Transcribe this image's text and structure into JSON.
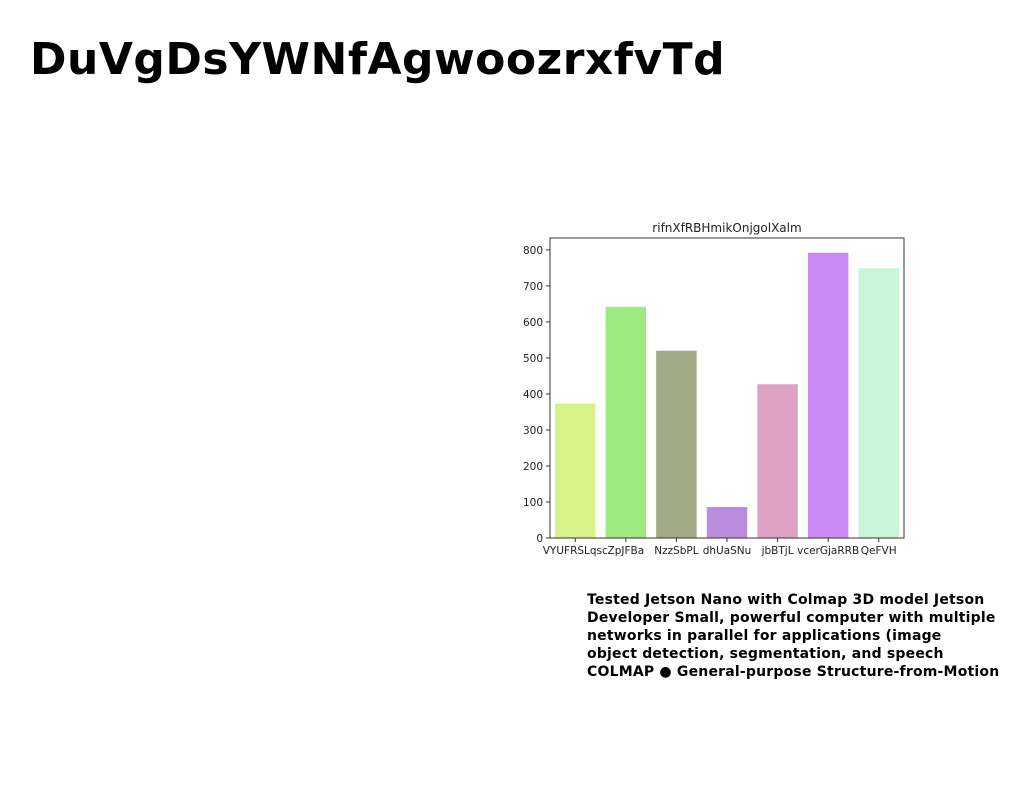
{
  "title": "DuVgDsYWNfAgwoozrxfvTd",
  "chart_data": {
    "type": "bar",
    "title": "rifnXfRBHmikOnjgolXalm",
    "categories": [
      "VYUFRSLqsc",
      "ZpJFBa",
      "NzzSbPL",
      "dhUaSNu",
      "jbBTjL",
      "vcerGjaRRB",
      "QeFVH"
    ],
    "values": [
      373,
      642,
      520,
      86,
      427,
      792,
      749
    ],
    "colors": [
      "#d8f28a",
      "#9eea80",
      "#a2a986",
      "#b98ce0",
      "#dea2c4",
      "#c98af4",
      "#c8f5d8"
    ],
    "ylim": [
      0,
      833
    ],
    "yticks": [
      0,
      100,
      200,
      300,
      400,
      500,
      600,
      700,
      800
    ],
    "grid": false
  },
  "caption": [
    "Tested Jetson Nano with Colmap 3D model Jetson",
    "Developer Small, powerful computer with multiple",
    "networks in parallel for applications (image",
    "object detection, segmentation, and speech",
    "COLMAP ● General-purpose Structure-from-Motion"
  ]
}
